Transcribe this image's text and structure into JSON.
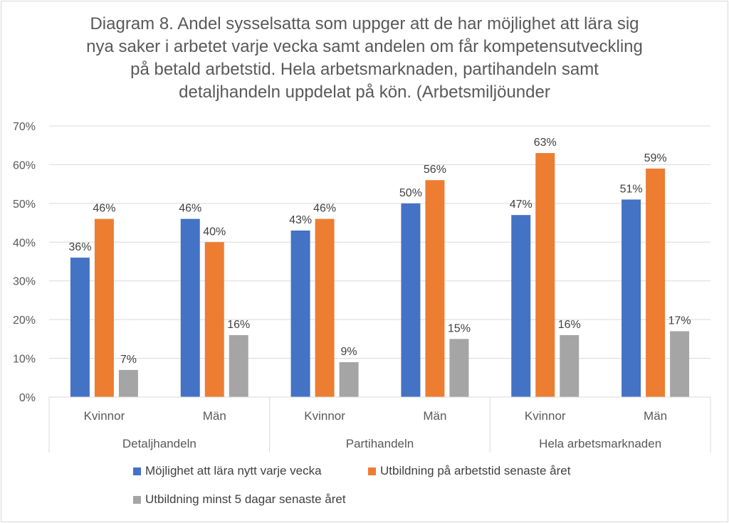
{
  "chart_data": {
    "type": "bar",
    "title_lines": [
      "Diagram 8. Andel sysselsatta som uppger att de har möjlighet att lära sig",
      "nya saker i arbetet varje vecka samt andelen om får kompetensutveckling",
      "på betald arbetstid. Hela arbetsmarknaden, partihandeln samt",
      "detaljhandeln uppdelat på kön. (Arbetsmiljöunder"
    ],
    "groups": [
      {
        "label": "Detaljhandeln",
        "categories": [
          "Kvinnor",
          "Män"
        ]
      },
      {
        "label": "Partihandeln",
        "categories": [
          "Kvinnor",
          "Män"
        ]
      },
      {
        "label": "Hela arbetsmarknaden",
        "categories": [
          "Kvinnor",
          "Män"
        ]
      }
    ],
    "series": [
      {
        "name": "Möjlighet att lära nytt varje vecka",
        "color": "#4472c4",
        "values": [
          36,
          46,
          43,
          50,
          47,
          51
        ]
      },
      {
        "name": "Utbildning på arbetstid senaste året",
        "color": "#ed7d31",
        "values": [
          46,
          40,
          46,
          56,
          63,
          59
        ]
      },
      {
        "name": "Utbildning minst 5 dagar senaste året",
        "color": "#a5a5a5",
        "values": [
          7,
          16,
          9,
          15,
          16,
          17
        ]
      }
    ],
    "ylim": [
      0,
      70
    ],
    "yticks": [
      0,
      10,
      20,
      30,
      40,
      50,
      60,
      70
    ],
    "value_suffix": "%",
    "grid": true,
    "legend_position": "bottom"
  }
}
